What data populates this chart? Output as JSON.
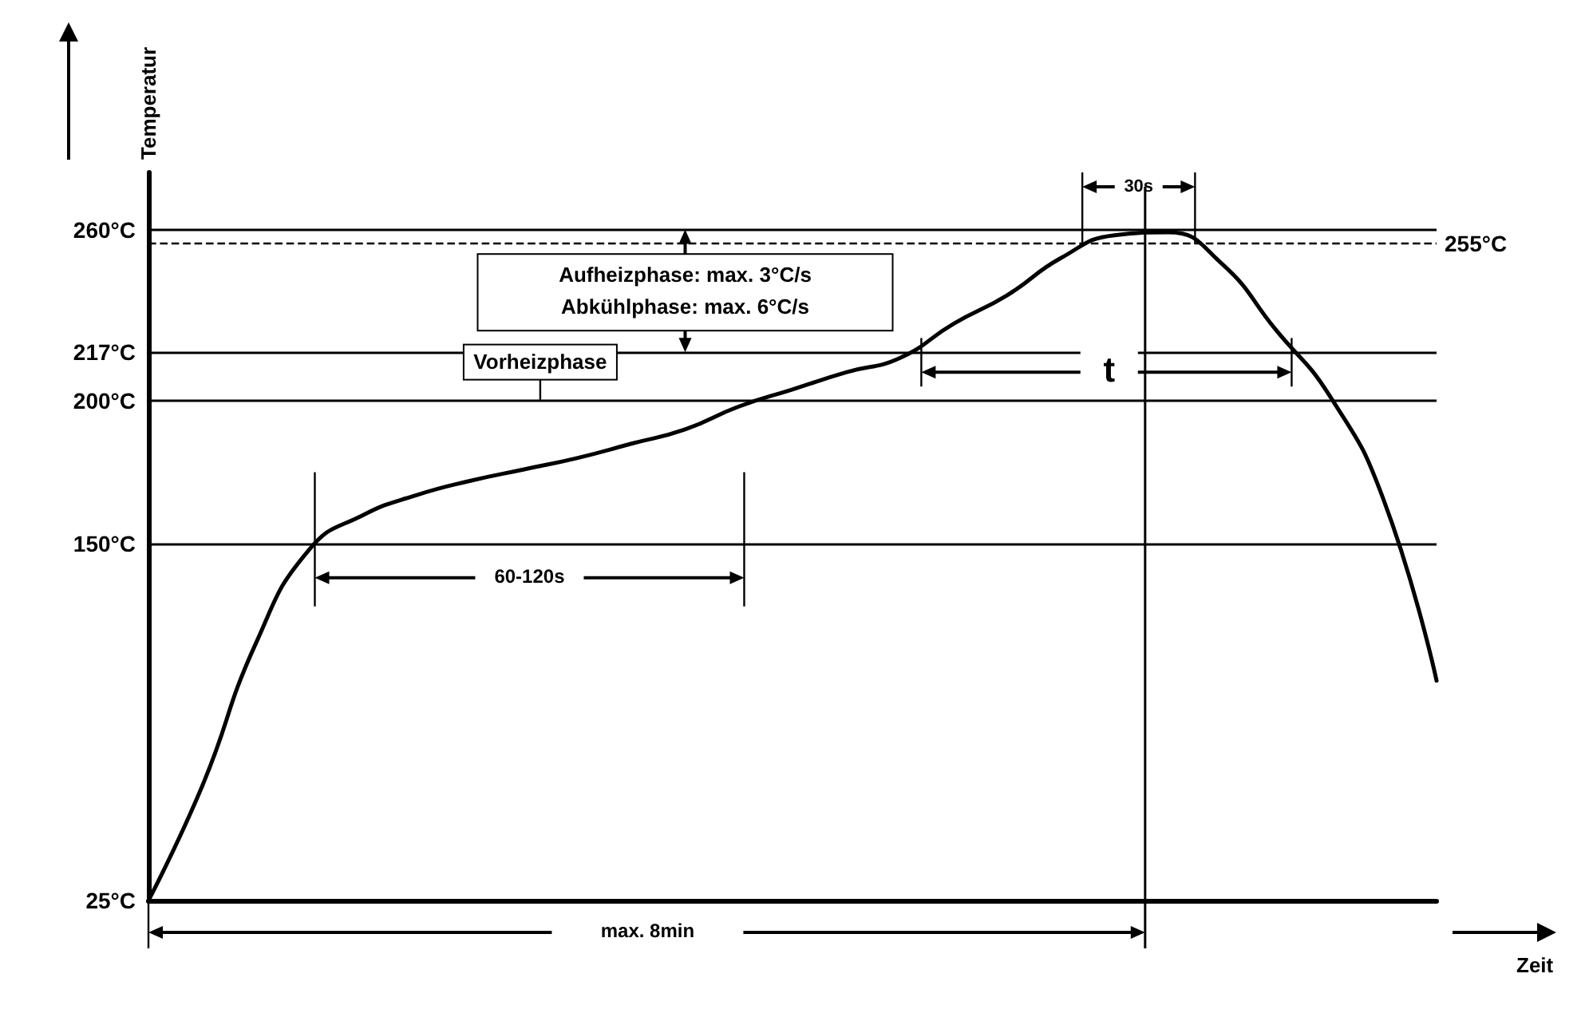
{
  "chart_data": {
    "type": "line",
    "xlabel": "Zeit",
    "ylabel": "Temperatur",
    "categories": [
      null,
      null,
      null,
      null,
      null,
      null,
      null,
      null,
      null,
      null,
      null,
      null,
      null,
      null,
      null,
      null,
      null,
      null,
      null,
      null,
      null,
      null,
      null,
      null,
      null
    ],
    "values": [
      25,
      65,
      115,
      148,
      160,
      167,
      172,
      176,
      180,
      185,
      190,
      198,
      204,
      210,
      215,
      227,
      237,
      250,
      258,
      259,
      248,
      225,
      202,
      166,
      102
    ],
    "color": "#000000",
    "marker": "none",
    "line_style": "solid",
    "grid": false,
    "tick_labels": "y",
    "ylim": [
      25,
      280
    ],
    "yticks": [
      {
        "value": 25,
        "label": "25°C"
      },
      {
        "value": 150,
        "label": "150°C"
      },
      {
        "value": 200,
        "label": "200°C"
      },
      {
        "value": 217,
        "label": "217°C"
      },
      {
        "value": 260,
        "label": "260°C"
      }
    ],
    "ref_lines": [
      {
        "axis": "y",
        "value": 260,
        "label": null
      },
      {
        "axis": "y",
        "value": 217,
        "label": null
      },
      {
        "axis": "y",
        "value": 200,
        "label": null
      },
      {
        "axis": "y",
        "value": 150,
        "label": null
      },
      {
        "axis": "y",
        "value": 255,
        "label": "255°C",
        "line_style": "dashed"
      }
    ],
    "annotations": [
      "Aufheizphase: max. 3°C/s\nAbkühlphase: max. 6°C/s",
      "Vorheizphase",
      "60-120s",
      "t",
      "30s",
      "max. 8min"
    ]
  }
}
